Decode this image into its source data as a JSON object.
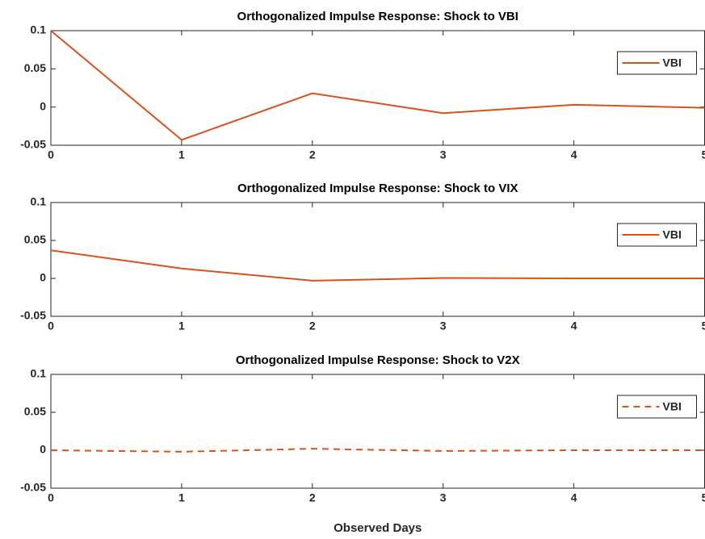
{
  "chart_data": [
    {
      "type": "line",
      "title": "Orthogonalized Impulse Response: Shock to VBI",
      "x": [
        0,
        1,
        2,
        3,
        4,
        5
      ],
      "xlim": [
        0,
        5
      ],
      "xticks": [
        0,
        1,
        2,
        3,
        4,
        5
      ],
      "ylim": [
        -0.05,
        0.1
      ],
      "yticks": [
        -0.05,
        0,
        0.05,
        0.1
      ],
      "legend": "northeast",
      "series": [
        {
          "name": "VBI",
          "color": "#d95319",
          "line_style": "solid",
          "values": [
            0.1,
            -0.043,
            0.018,
            -0.008,
            0.003,
            -0.001
          ]
        }
      ]
    },
    {
      "type": "line",
      "title": "Orthogonalized Impulse Response: Shock to VIX",
      "x": [
        0,
        1,
        2,
        3,
        4,
        5
      ],
      "xlim": [
        0,
        5
      ],
      "xticks": [
        0,
        1,
        2,
        3,
        4,
        5
      ],
      "ylim": [
        -0.05,
        0.1
      ],
      "yticks": [
        -0.05,
        0,
        0.05,
        0.1
      ],
      "legend": "northeast",
      "series": [
        {
          "name": "VBI",
          "color": "#d95319",
          "line_style": "solid",
          "values": [
            0.037,
            0.013,
            -0.003,
            0.0005,
            0,
            0
          ]
        }
      ]
    },
    {
      "type": "line",
      "title": "Orthogonalized Impulse Response: Shock to V2X",
      "xlabel": "Observed Days",
      "x": [
        0,
        1,
        2,
        3,
        4,
        5
      ],
      "xlim": [
        0,
        5
      ],
      "xticks": [
        0,
        1,
        2,
        3,
        4,
        5
      ],
      "ylim": [
        -0.05,
        0.1
      ],
      "yticks": [
        -0.05,
        0,
        0.05,
        0.1
      ],
      "legend": "northeast",
      "series": [
        {
          "name": "VBI",
          "color": "#d95319",
          "line_style": "dashed",
          "values": [
            0,
            -0.002,
            0.002,
            -0.001,
            0,
            0
          ]
        }
      ]
    }
  ]
}
